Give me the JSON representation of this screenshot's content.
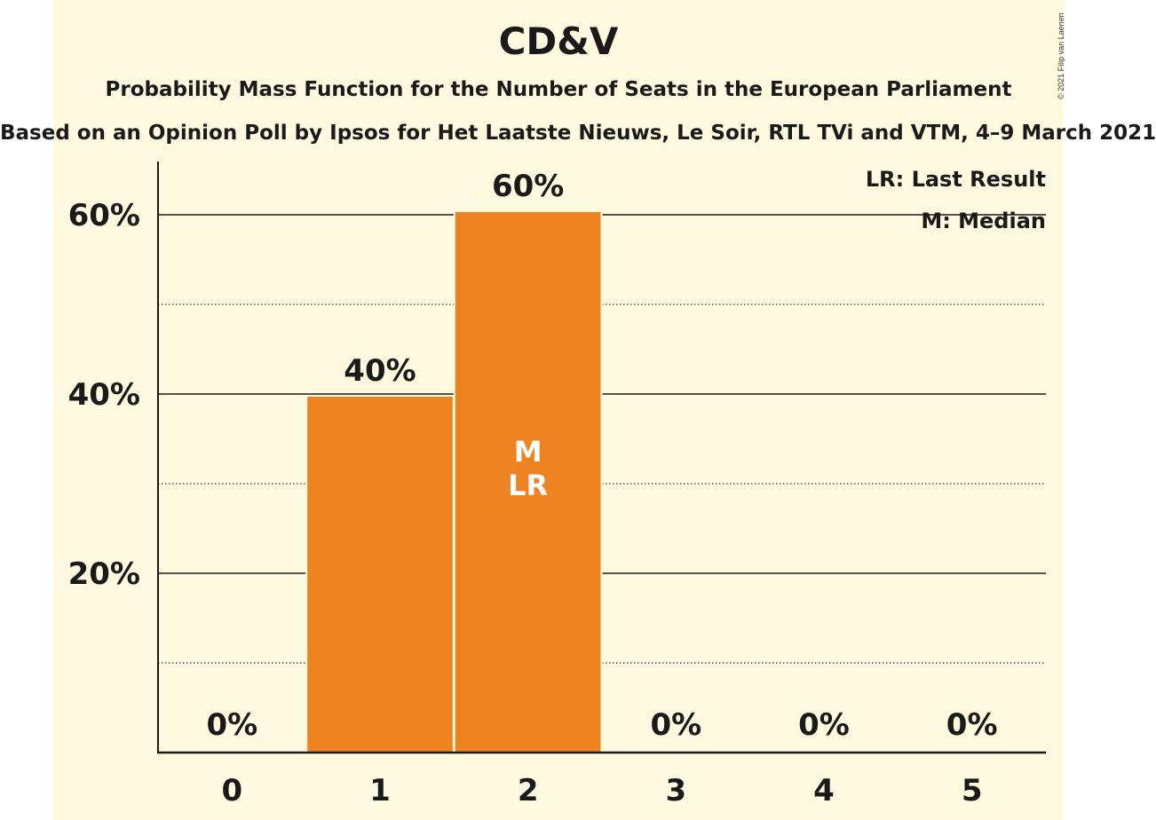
{
  "chart_data": {
    "type": "bar",
    "title": "CD&V",
    "subtitle": "Probability Mass Function for the Number of Seats in the European Parliament",
    "source": "Based on an Opinion Poll by Ipsos for Het Laatste Nieuws, Le Soir, RTL TVi and VTM, 4–9 March 2021",
    "copyright": "© 2021 Filip van Laenen",
    "categories": [
      "0",
      "1",
      "2",
      "3",
      "4",
      "5"
    ],
    "values": [
      0,
      39.7,
      60.3,
      0,
      0,
      0
    ],
    "value_labels": [
      "0%",
      "40%",
      "60%",
      "0%",
      "0%",
      "0%"
    ],
    "bar_annotations": {
      "2": [
        "M",
        "LR"
      ]
    },
    "ylim": [
      0,
      65
    ],
    "yticks": [
      20,
      40,
      60
    ],
    "ytick_labels": [
      "20%",
      "40%",
      "60%"
    ],
    "minor_gridlines": [
      10,
      30,
      50
    ],
    "legend": [
      "LR: Last Result",
      "M: Median"
    ],
    "legend_placement": "top-right",
    "grid": true,
    "colors": {
      "bar": "#f08321",
      "background": "#fef9df",
      "text": "#1a1a1a"
    }
  }
}
